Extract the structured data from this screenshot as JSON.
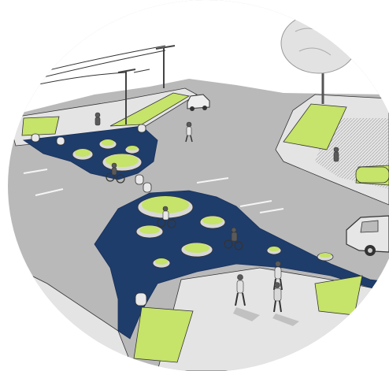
{
  "illustration": {
    "colors": {
      "background": "#ffffff",
      "road": "#b9b9b9",
      "road_dark": "#a8a8a8",
      "sidewalk": "#e4e4e4",
      "plaza": "#1f3d6b",
      "plaza_edge": "#17305a",
      "planter_green": "#c6e36a",
      "planter_rim": "#d8d8d8",
      "outline": "#333333",
      "tree_foliage": "#c9c9c9",
      "people": "#555555",
      "car": "#d9d9d9"
    },
    "icons": [
      "utility-pole-icon",
      "tree-icon",
      "pedestrian-icon",
      "cyclist-icon",
      "car-icon",
      "planter-icon",
      "bollard-icon"
    ]
  }
}
